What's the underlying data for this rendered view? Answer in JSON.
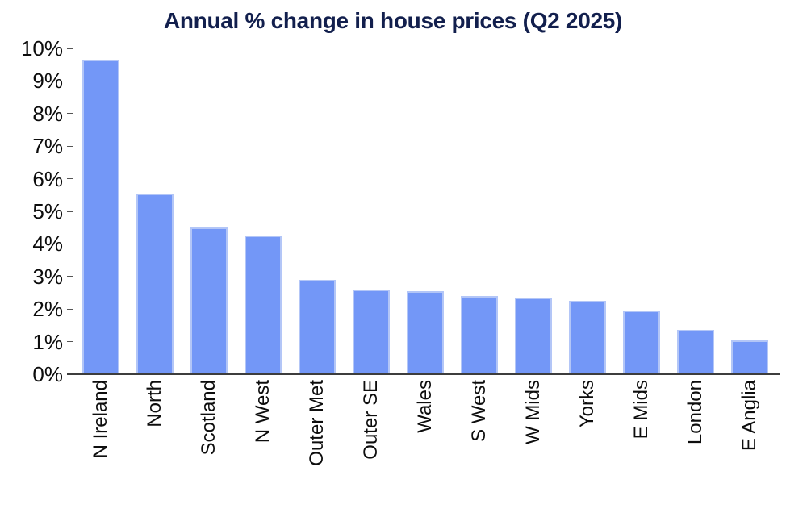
{
  "chart_data": {
    "type": "bar",
    "title": "Annual % change in house prices (Q2 2025)",
    "categories": [
      "N Ireland",
      "North",
      "Scotland",
      "N West",
      "Outer Met",
      "Outer SE",
      "Wales",
      "S West",
      "W Mids",
      "Yorks",
      "E Mids",
      "London",
      "E Anglia"
    ],
    "values": [
      9.65,
      5.55,
      4.5,
      4.25,
      2.9,
      2.6,
      2.55,
      2.4,
      2.35,
      2.25,
      1.95,
      1.35,
      1.05
    ],
    "xlabel": "",
    "ylabel": "",
    "ylim": [
      0,
      10
    ],
    "ytick_step": 1,
    "ytick_labels": [
      "0%",
      "1%",
      "2%",
      "3%",
      "4%",
      "5%",
      "6%",
      "7%",
      "8%",
      "9%",
      "10%"
    ],
    "grid": false,
    "legend_position": "none",
    "x_label_rotation": -90,
    "colors": {
      "bar_fill": "#7397f7",
      "bar_border": "#b3c6f7",
      "title": "#121f4d",
      "axis_line": "#3d3d3d",
      "tick_mark": "#555555",
      "tick_label": "#0d0d0d",
      "background": "#ffffff"
    }
  }
}
